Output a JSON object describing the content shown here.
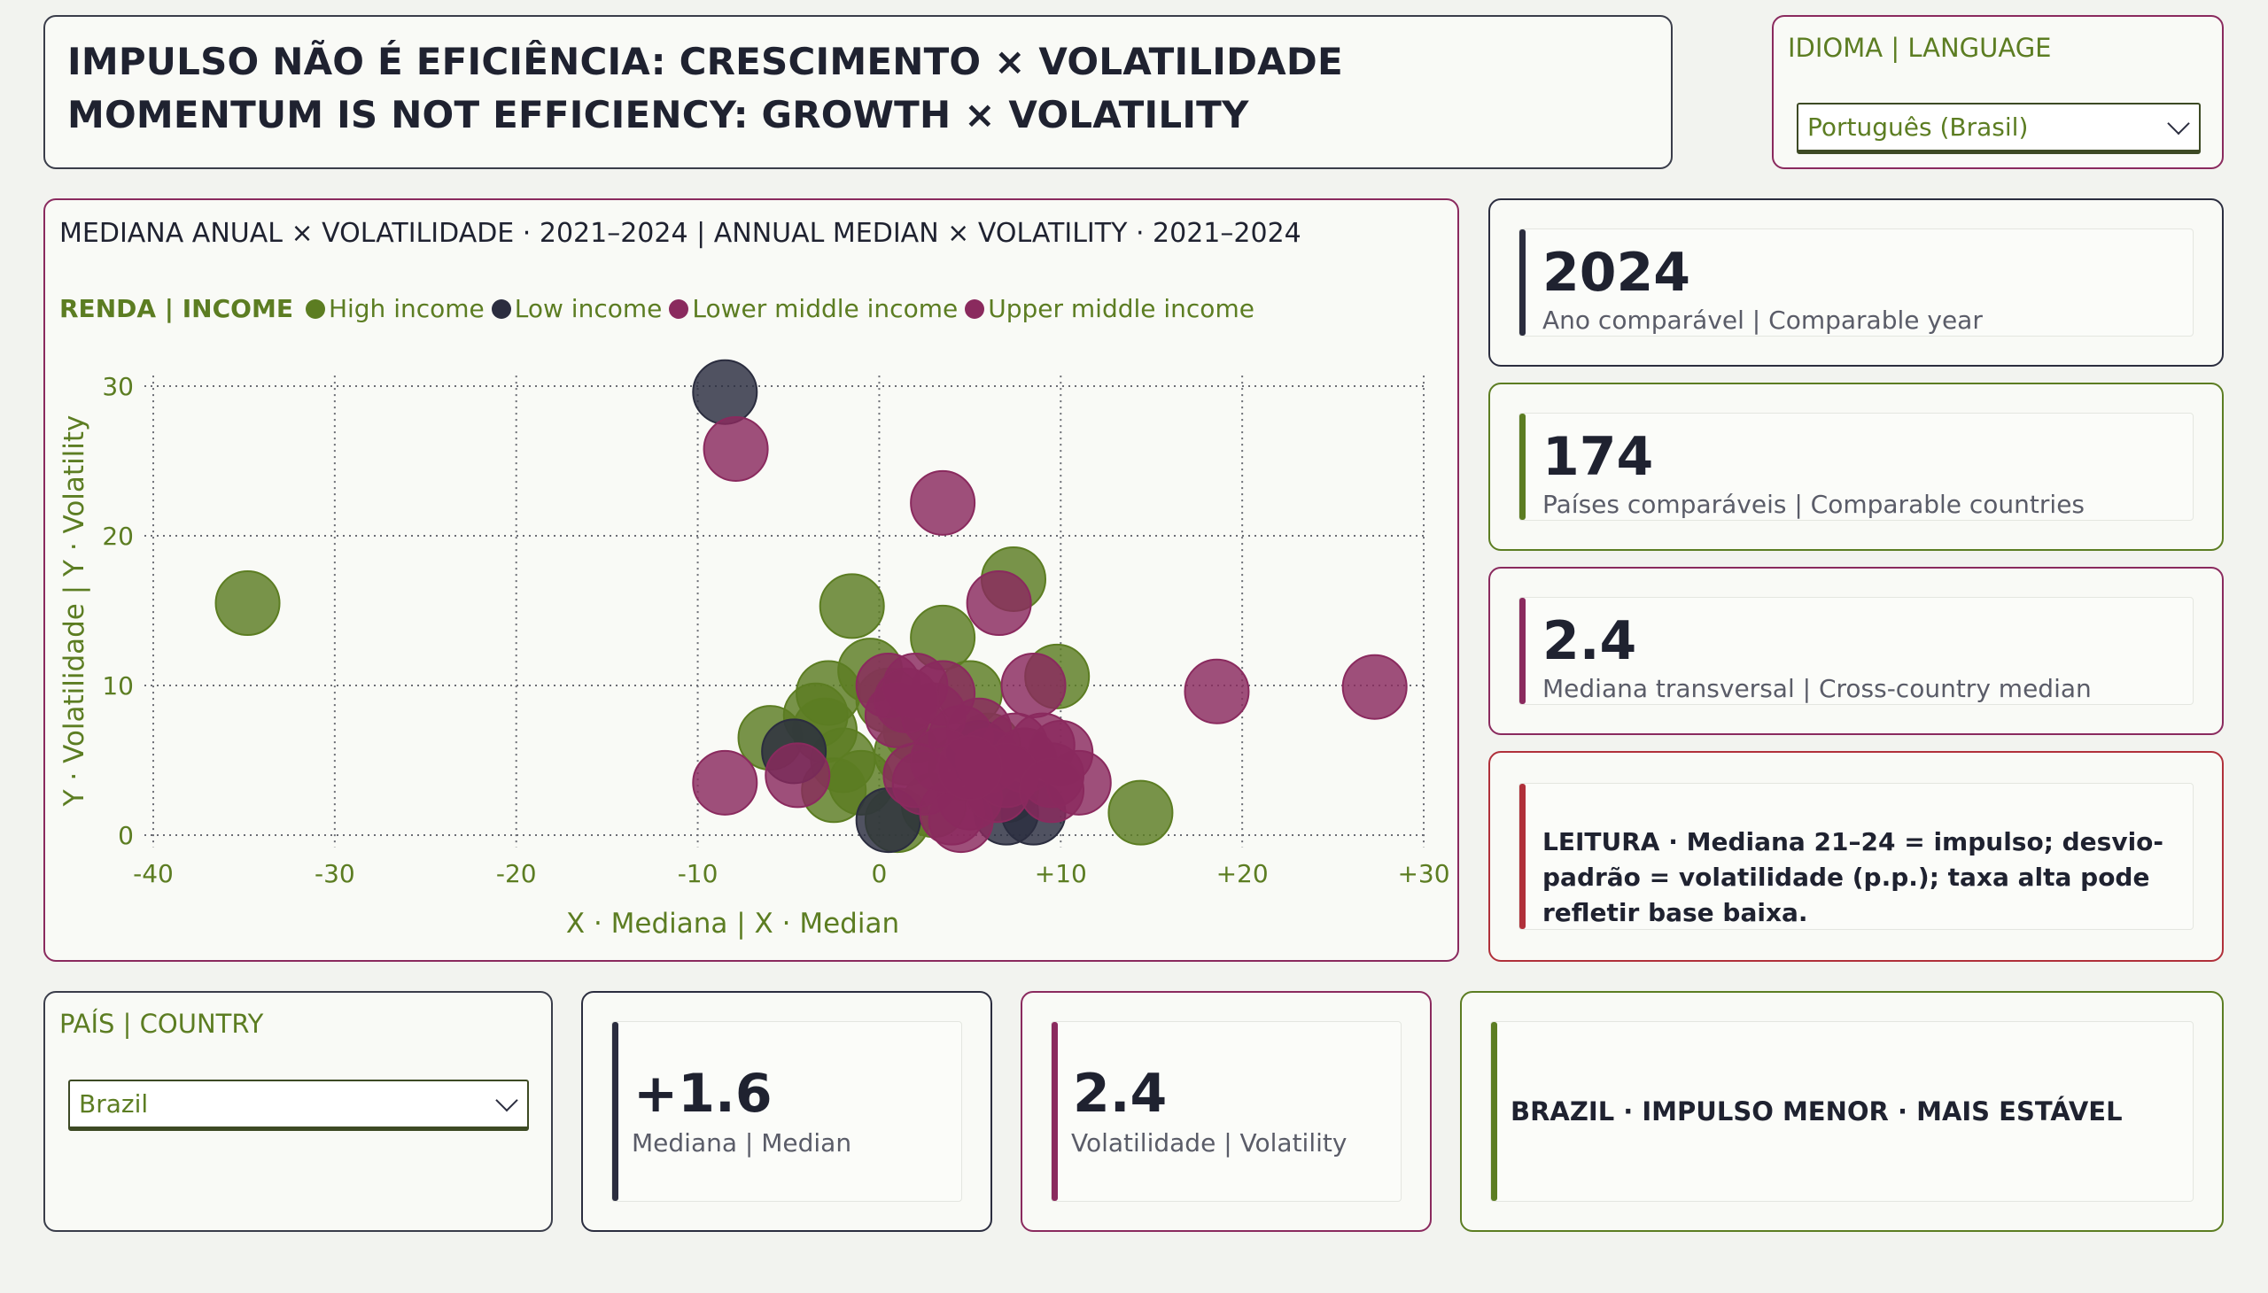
{
  "title": {
    "line1": "IMPULSO NÃO É EFICIÊNCIA: CRESCIMENTO × VOLATILIDADE",
    "line2": "MOMENTUM IS NOT EFFICIENCY: GROWTH × VOLATILITY"
  },
  "language": {
    "label": "IDIOMA | LANGUAGE",
    "selected": "Português (Brasil)"
  },
  "colors": {
    "high_income": "#5c7d22",
    "low_income": "#2b2d3f",
    "lower_middle_income": "#8a2a5e",
    "upper_middle_income": "#8a2a5e",
    "accent_dark": "#2b2d3f",
    "accent_green": "#5c7d22",
    "accent_magenta": "#8a2a5e",
    "accent_red": "#b0303a"
  },
  "legend": {
    "title": "RENDA | INCOME",
    "items": [
      {
        "label": "High income",
        "color": "#5c7d22"
      },
      {
        "label": "Low income",
        "color": "#2b2d3f"
      },
      {
        "label": "Lower middle income",
        "color": "#8a2a5e"
      },
      {
        "label": "Upper middle income",
        "color": "#8a2a5e"
      }
    ]
  },
  "chart_data": {
    "type": "scatter",
    "title": "MEDIANA ANUAL × VOLATILIDADE · 2021–2024 | ANNUAL MEDIAN × VOLATILITY · 2021–2024",
    "xlabel": "X · Mediana | X · Median",
    "ylabel": "Y · Volatilidade | Y · Volatility",
    "xlim": [
      -40,
      30
    ],
    "ylim": [
      -1,
      31
    ],
    "xticks": [
      "-40",
      "-30",
      "-20",
      "-10",
      "0",
      "+10",
      "+20",
      "+30"
    ],
    "xtick_values": [
      -40,
      -30,
      -20,
      -10,
      0,
      10,
      20,
      30
    ],
    "yticks": [
      "0",
      "10",
      "20",
      "30"
    ],
    "ytick_values": [
      0,
      10,
      20,
      30
    ],
    "grid": true,
    "legend_position": "top-left",
    "series": [
      {
        "name": "High income",
        "color": "#5c7d22",
        "points": [
          [
            -34.8,
            15.5
          ],
          [
            -1.5,
            15.3
          ],
          [
            7.4,
            17.1
          ],
          [
            3.5,
            13.2
          ],
          [
            9.8,
            10.6
          ],
          [
            14.4,
            1.5
          ],
          [
            1.0,
            1.0
          ],
          [
            -2.8,
            9.5
          ],
          [
            -3.5,
            8.0
          ],
          [
            -6.0,
            6.5
          ],
          [
            -2.0,
            5.0
          ],
          [
            -1.0,
            3.5
          ],
          [
            0.5,
            9.0
          ],
          [
            2.0,
            7.0
          ],
          [
            5.0,
            9.5
          ],
          [
            -2.5,
            3.0
          ],
          [
            4.5,
            4.5
          ],
          [
            3.0,
            2.0
          ],
          [
            -0.5,
            11.0
          ],
          [
            6.0,
            6.0
          ],
          [
            1.5,
            5.5
          ],
          [
            -3.0,
            7.0
          ],
          [
            7.0,
            3.0
          ]
        ]
      },
      {
        "name": "Low income",
        "color": "#2b2d3f",
        "points": [
          [
            -8.5,
            29.6
          ],
          [
            -4.7,
            5.6
          ],
          [
            8.5,
            1.5
          ],
          [
            0.5,
            1.0
          ],
          [
            5.5,
            5.5
          ],
          [
            7.0,
            1.5
          ]
        ]
      },
      {
        "name": "Lower middle income",
        "color": "#8a2a5e",
        "points": [
          [
            -7.9,
            25.8
          ],
          [
            3.5,
            22.2
          ],
          [
            6.6,
            15.5
          ],
          [
            8.5,
            10.0
          ],
          [
            -8.5,
            3.5
          ],
          [
            -4.5,
            4.0
          ],
          [
            2.0,
            10.0
          ],
          [
            3.5,
            9.5
          ],
          [
            4.5,
            6.5
          ],
          [
            6.0,
            5.0
          ],
          [
            9.5,
            4.0
          ],
          [
            11.0,
            3.5
          ],
          [
            4.0,
            1.5
          ],
          [
            2.5,
            3.5
          ],
          [
            7.5,
            6.0
          ],
          [
            1.0,
            8.0
          ],
          [
            5.0,
            2.5
          ],
          [
            9.0,
            6.0
          ]
        ]
      },
      {
        "name": "Upper middle income",
        "color": "#8a2a5e",
        "points": [
          [
            18.6,
            9.6
          ],
          [
            27.3,
            9.9
          ],
          [
            0.5,
            10.0
          ],
          [
            3.0,
            8.0
          ],
          [
            5.5,
            7.0
          ],
          [
            8.0,
            5.0
          ],
          [
            10.0,
            5.5
          ],
          [
            2.0,
            4.0
          ],
          [
            4.5,
            1.0
          ],
          [
            6.5,
            3.0
          ],
          [
            3.5,
            5.0
          ],
          [
            1.5,
            9.0
          ],
          [
            7.0,
            4.0
          ],
          [
            9.5,
            3.0
          ],
          [
            5.0,
            4.5
          ]
        ]
      }
    ]
  },
  "kpis": {
    "year": {
      "value": "2024",
      "label": "Ano comparável | Comparable year"
    },
    "countries": {
      "value": "174",
      "label": "Países comparáveis | Comparable countries"
    },
    "median": {
      "value": "2.4",
      "label": "Mediana transversal | Cross-country median"
    }
  },
  "note": {
    "text": "LEITURA · Mediana 21–24 = impulso; desvio-padrão = volatilidade (p.p.); taxa alta pode refletir base baixa."
  },
  "country": {
    "label": "PAÍS | COUNTRY",
    "selected": "Brazil"
  },
  "country_kpis": {
    "median": {
      "value": "+1.6",
      "label": "Mediana | Median"
    },
    "volatility": {
      "value": "2.4",
      "label": "Volatilidade | Volatility"
    }
  },
  "verdict": {
    "text": "BRAZIL · IMPULSO MENOR · MAIS ESTÁVEL"
  }
}
